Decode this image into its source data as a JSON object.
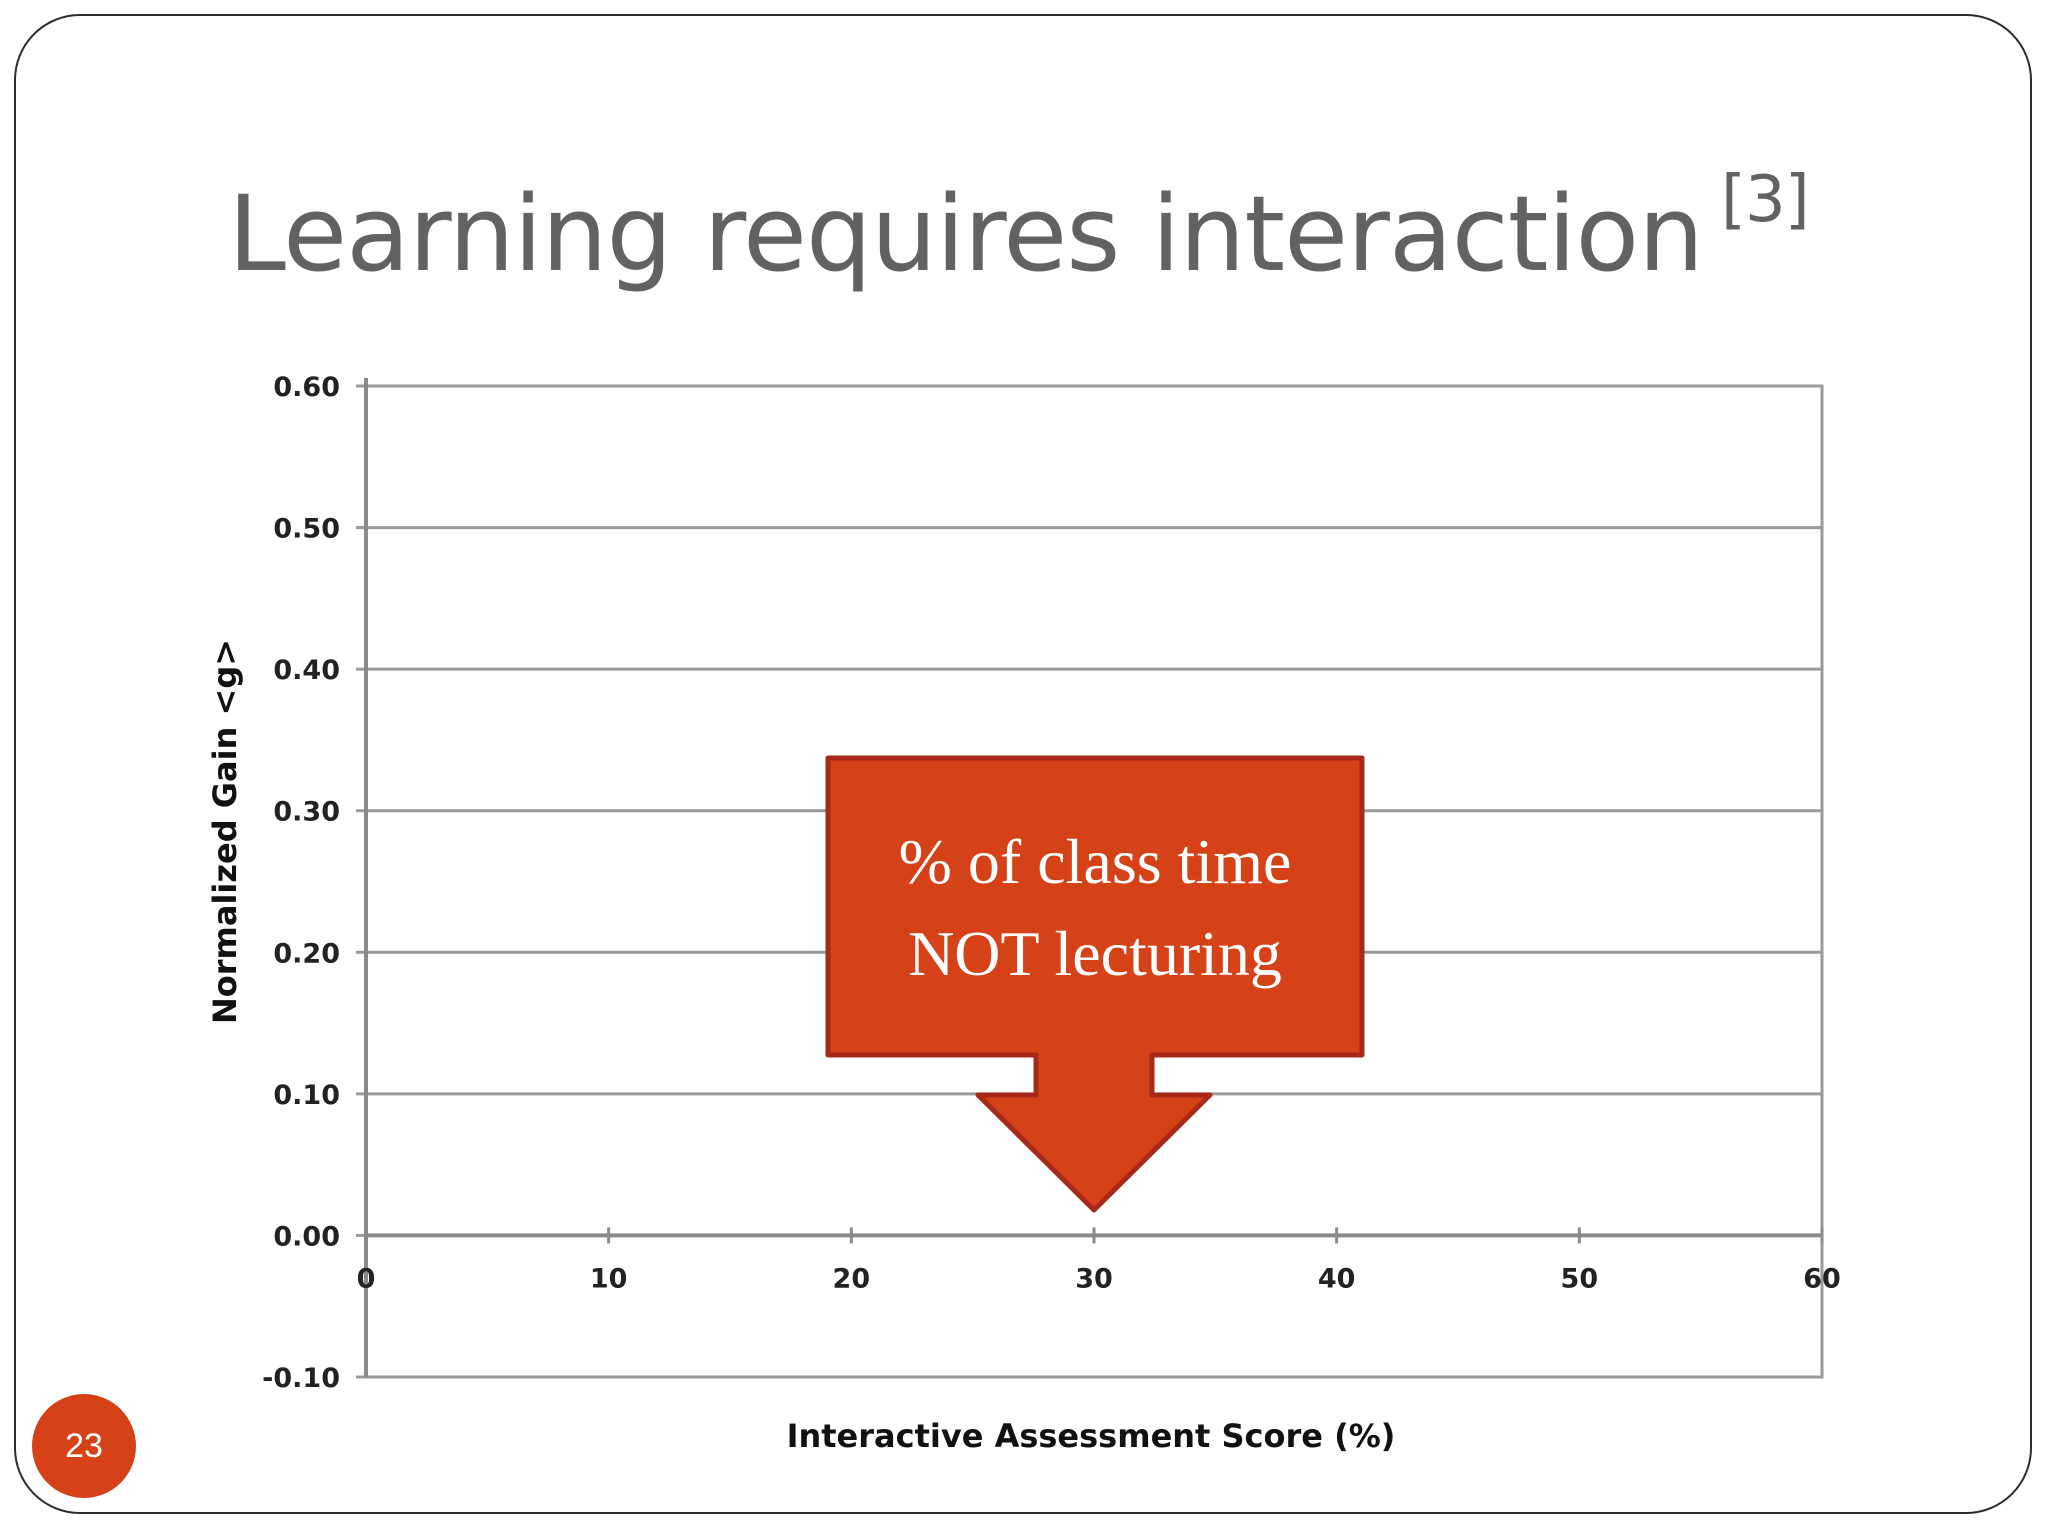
{
  "slide": {
    "title": "Learning requires interaction",
    "title_superscript": "[3]",
    "page_number": "23",
    "accent_color": "#d64218"
  },
  "callout": {
    "line1": "% of class time",
    "line2": "NOT lecturing",
    "fill_color": "#d64218",
    "border_color": "#a8281a",
    "points_to_x": 30
  },
  "chart_data": {
    "type": "scatter",
    "title": "",
    "xlabel": "Interactive Assessment Score (%)",
    "ylabel": "Normalized Gain <g>",
    "xlim": [
      0,
      60
    ],
    "ylim": [
      -0.1,
      0.6
    ],
    "x_ticks": [
      "0",
      "10",
      "20",
      "30",
      "40",
      "50",
      "60"
    ],
    "y_ticks": [
      "0.60",
      "0.50",
      "0.40",
      "0.30",
      "0.20",
      "0.10",
      "0.00",
      "-0.10"
    ],
    "grid": true,
    "series": []
  }
}
